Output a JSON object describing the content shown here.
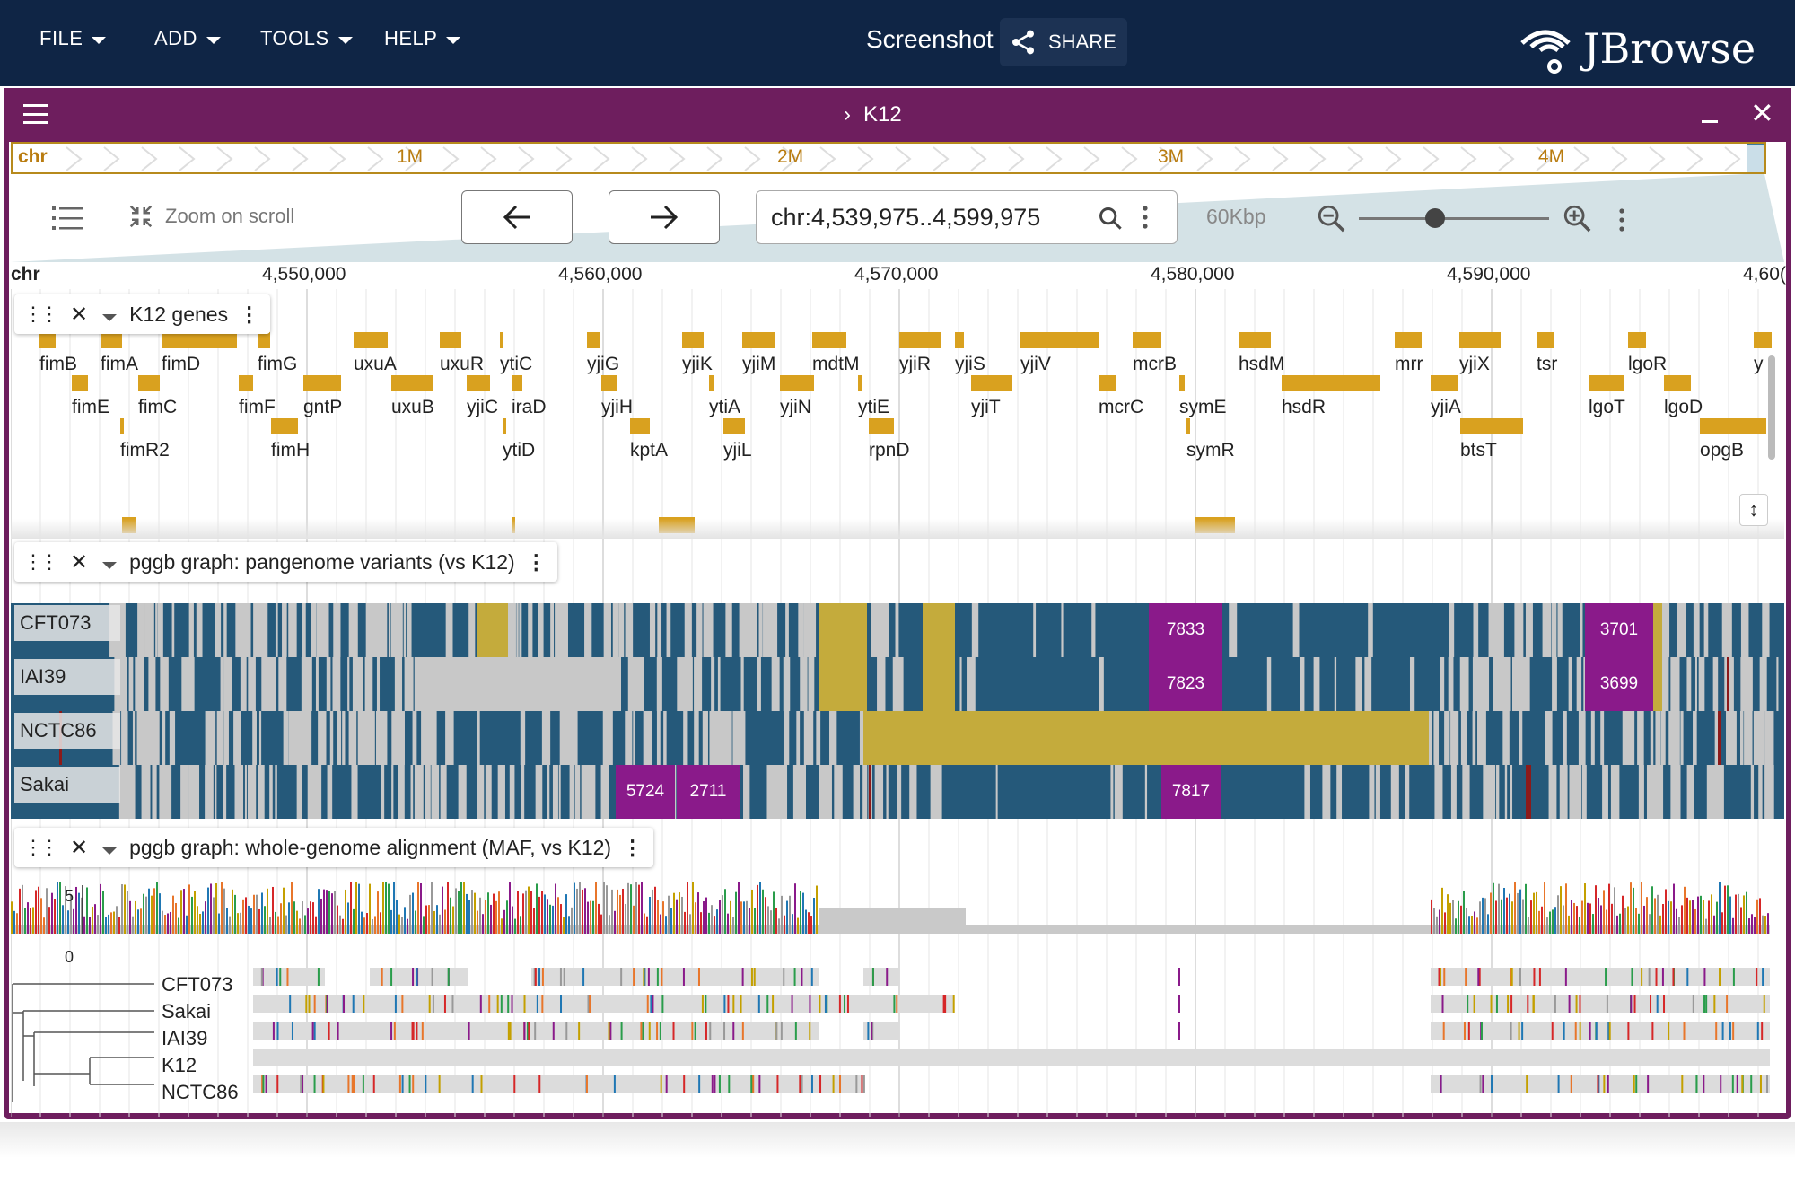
{
  "app": {
    "menus": [
      {
        "label": "FILE"
      },
      {
        "label": "ADD"
      },
      {
        "label": "TOOLS"
      },
      {
        "label": "HELP"
      }
    ],
    "screenshot_label": "Screenshot",
    "share_label": "SHARE",
    "logo_text": "JBrowse"
  },
  "view": {
    "title": "K12",
    "overview": {
      "refname": "chr",
      "ticks": [
        "1M",
        "2M",
        "3M",
        "4M"
      ]
    },
    "toolbar": {
      "zoom_on_scroll_label": "Zoom on scroll",
      "locstring": "chr:4,539,975..4,599,975",
      "bp_per_view": "60Kbp",
      "zoom_level": 0.4
    },
    "ruler": {
      "refname": "chr",
      "ticks": [
        "4,550,000",
        "4,560,000",
        "4,570,000",
        "4,580,000",
        "4,590,000",
        "4,60("
      ]
    }
  },
  "tracks": {
    "genes": {
      "label": "K12 genes",
      "row1": [
        "fimB",
        "fimA",
        "fimD",
        "fimG",
        "uxuA",
        "uxuR",
        "ytiC",
        "yjiG",
        "yjiK",
        "yjiM",
        "mdtM",
        "yjiR",
        "yjiS",
        "yjiV",
        "mcrB",
        "hsdM",
        "mrr",
        "yjiX",
        "tsr",
        "lgoR",
        "y"
      ],
      "row2": [
        "fimE",
        "fimC",
        "fimF",
        "gntP",
        "uxuB",
        "yjiC",
        "iraD",
        "yjiH",
        "ytiA",
        "yjiN",
        "ytiE",
        "yjiT",
        "mcrC",
        "symE",
        "hsdR",
        "yjiA",
        "lgoT",
        "lgoD"
      ],
      "row3": [
        "fimR2",
        "fimH",
        "ytiD",
        "kptA",
        "yjiL",
        "rpnD",
        "symR",
        "btsT",
        "opgB"
      ]
    },
    "pangenome": {
      "label": "pggb graph: pangenome variants (vs K12)",
      "samples": [
        "CFT073",
        "IAI39",
        "NCTC86",
        "Sakai"
      ],
      "blocks": {
        "cft_a": "7833",
        "cft_b": "3701",
        "iai_a": "7823",
        "iai_b": "3699",
        "sak_a": "5724",
        "sak_b": "2711",
        "sak_c": "7817"
      }
    },
    "maf": {
      "label": "pggb graph: whole-genome alignment (MAF, vs K12)",
      "axis_max": "5",
      "axis_min": "0",
      "samples": [
        "CFT073",
        "Sakai",
        "IAI39",
        "K12",
        "NCTC86"
      ]
    }
  },
  "colors": {
    "header": "#0f2545",
    "view_border": "#6e1e5e",
    "gene": "#d9a11f",
    "ref_match": "#25597a",
    "deletion": "#c4ab3c",
    "insertion": "#8a1a8a",
    "nocall": "#c8c8c8"
  }
}
